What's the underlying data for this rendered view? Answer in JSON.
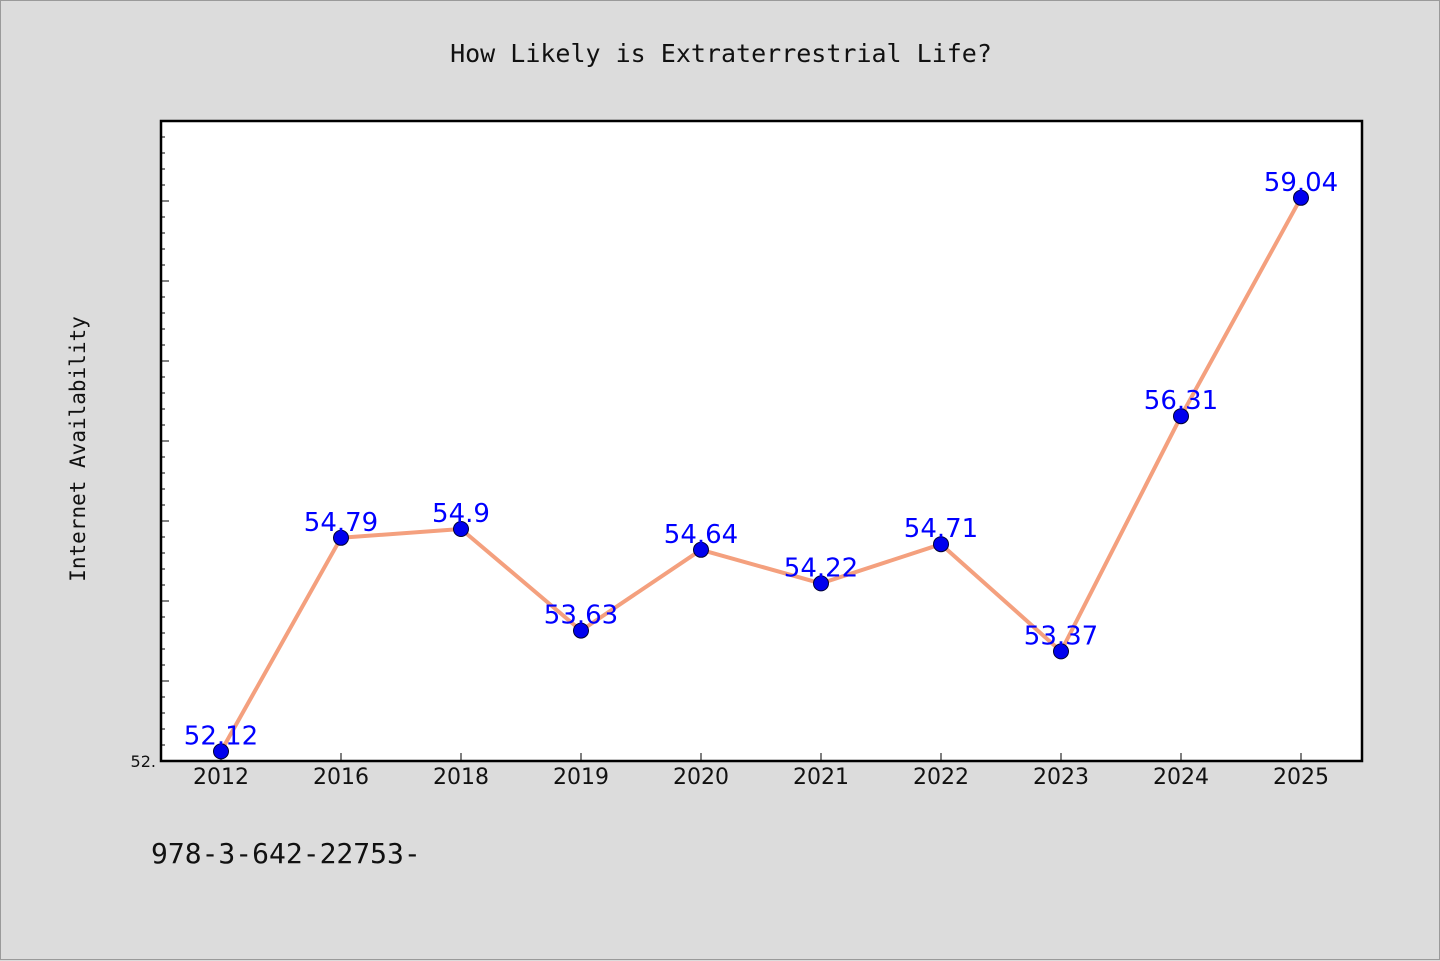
{
  "chart_data": {
    "type": "line",
    "title": "How Likely is Extraterrestrial Life?",
    "xlabel": "",
    "ylabel": "Internet Availability",
    "categories": [
      "2012",
      "2016",
      "2018",
      "2019",
      "2020",
      "2021",
      "2022",
      "2023",
      "2024",
      "2025"
    ],
    "values": [
      52.12,
      54.79,
      54.9,
      53.63,
      54.64,
      54.22,
      54.71,
      53.37,
      56.31,
      59.04
    ],
    "data_labels": [
      "52.12",
      "54.79",
      "54.9",
      "53.63",
      "54.64",
      "54.22",
      "54.71",
      "53.37",
      "56.31",
      "59.04"
    ],
    "ylim": [
      52.0,
      60.0
    ],
    "y_tick_label": "52.",
    "grid": false,
    "legend": "none",
    "colors": {
      "line": "#f4a07e",
      "marker_fill": "#0000ee",
      "marker_edge": "#000033",
      "label": "#0000ff",
      "background": "#dcdcdc",
      "plot_background": "#ffffff"
    }
  },
  "footer_text": "978-3-642-22753-"
}
